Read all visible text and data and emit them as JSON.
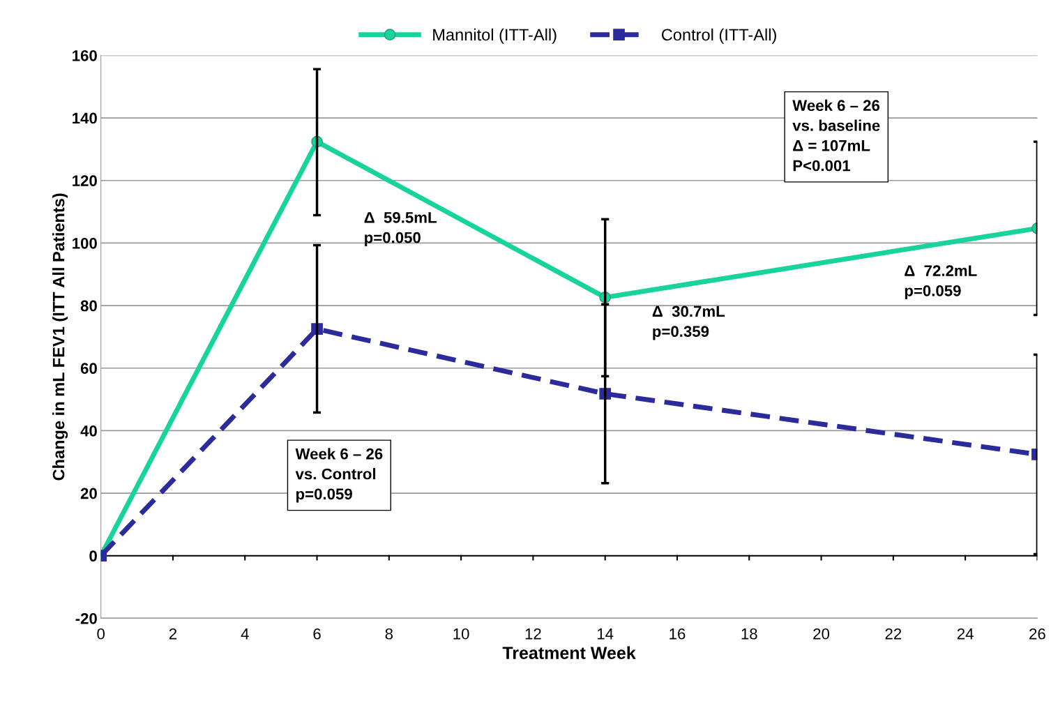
{
  "chart_data": {
    "type": "line",
    "xlabel": "Treatment Week",
    "ylabel": "Change in mL FEV1 (ITT All Patients)",
    "x": [
      0,
      6,
      14,
      26
    ],
    "series": [
      {
        "name": "Mannitol (ITT-All)",
        "color": "#19d39c",
        "values": [
          0,
          132.4,
          82.6,
          104.7
        ],
        "errors": [
          null,
          [
            108.9,
            155.6
          ],
          [
            57.4,
            107.6
          ],
          [
            77,
            132.4
          ]
        ],
        "marker": "circle",
        "line_style": "solid"
      },
      {
        "name": "Control (ITT-All)",
        "color": "#2b2b9c",
        "values": [
          0,
          72.5,
          51.8,
          32.4
        ],
        "errors": [
          null,
          [
            45.8,
            99.3
          ],
          [
            23.2,
            80.4
          ],
          [
            0.5,
            64.3
          ]
        ],
        "marker": "square",
        "line_style": "dashed"
      }
    ],
    "xlim": [
      0,
      26
    ],
    "xticks": [
      0,
      2,
      4,
      6,
      8,
      10,
      12,
      14,
      16,
      18,
      20,
      22,
      24,
      26
    ],
    "ylim": [
      -20,
      160
    ],
    "yticks": [
      -20,
      0,
      20,
      40,
      60,
      80,
      100,
      120,
      140,
      160
    ],
    "grid": "y",
    "legend": "top",
    "annotations": [
      "Δ  59.5mL\np=0.050",
      "Δ  30.7mL\np=0.359",
      "Δ  72.2mL\np=0.059",
      "Week 6 – 26\nvs. baseline\nΔ = 107mL\nP<0.001",
      "Week 6 – 26\nvs. Control\np=0.059"
    ]
  }
}
